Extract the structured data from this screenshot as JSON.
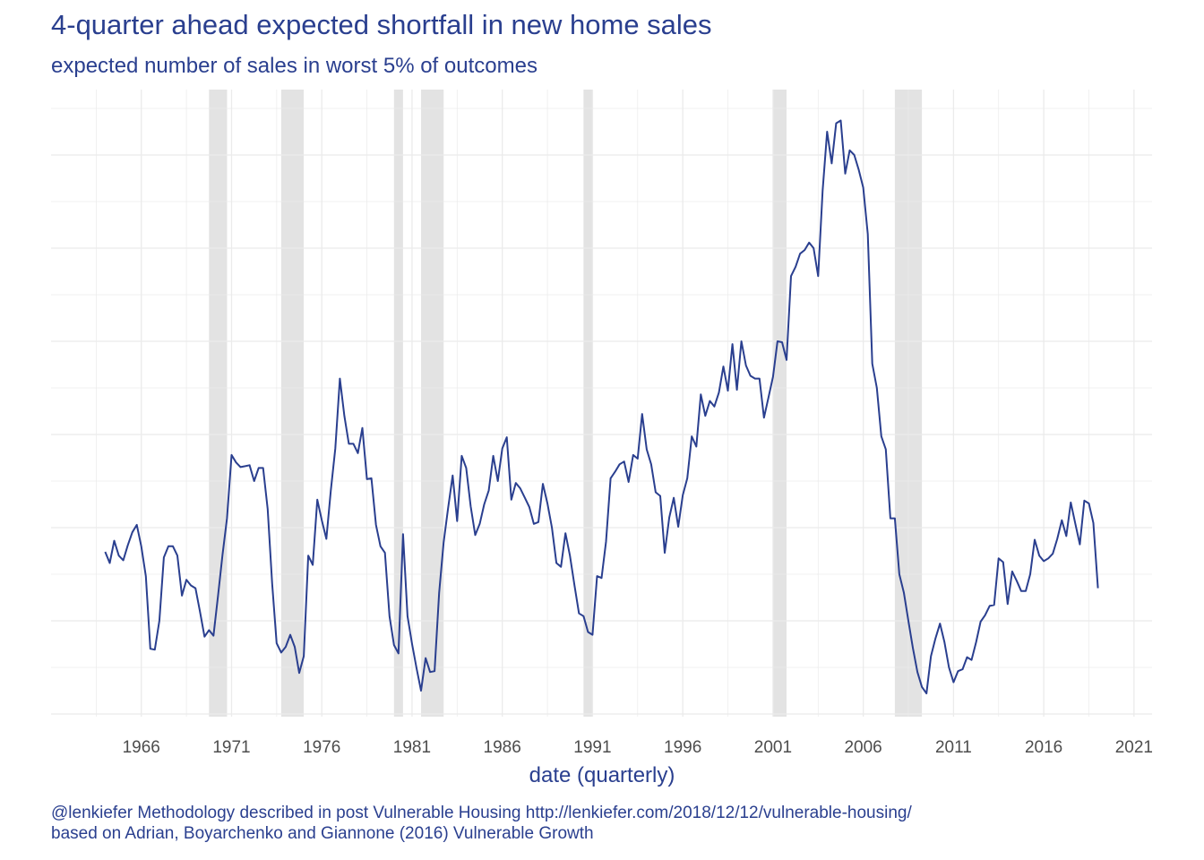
{
  "chart_data": {
    "type": "line",
    "title": "4-quarter ahead expected shortfall in new home sales",
    "subtitle": "expected number of sales in worst 5% of outcomes",
    "xlabel": "date (quarterly)",
    "ylabel": "",
    "x_range": [
      1961.0,
      2022.0
    ],
    "x_ticks": [
      1966,
      1971,
      1976,
      1981,
      1986,
      1991,
      1996,
      2001,
      2006,
      2011,
      2016,
      2021
    ],
    "y_range": [
      0,
      7
    ],
    "y_tick_labels_shown": false,
    "grid": true,
    "recession_shading_color": "#e3e3e3",
    "line_color": "#2a3f8f",
    "recessions": [
      [
        1969.75,
        1970.75
      ],
      [
        1973.75,
        1975.0
      ],
      [
        1980.0,
        1980.5
      ],
      [
        1981.5,
        1982.75
      ],
      [
        1990.5,
        1991.0
      ],
      [
        2001.0,
        2001.75
      ],
      [
        2007.75,
        2009.25
      ]
    ],
    "series": [
      {
        "x": [
          1964.0,
          1964.25,
          1964.5,
          1964.75,
          1965.0,
          1965.25,
          1965.5,
          1965.75,
          1966.0,
          1966.25,
          1966.5,
          1966.75,
          1967.0,
          1967.25,
          1967.5,
          1967.75,
          1968.0,
          1968.25,
          1968.5,
          1968.75,
          1969.0,
          1969.25,
          1969.5,
          1969.75,
          1970.0,
          1970.25,
          1970.5,
          1970.75,
          1971.0,
          1971.25,
          1971.5,
          1971.75,
          1972.0,
          1972.25,
          1972.5,
          1972.75,
          1973.0,
          1973.25,
          1973.5,
          1973.75,
          1974.0,
          1974.25,
          1974.5,
          1974.75,
          1975.0,
          1975.25,
          1975.5,
          1975.75,
          1976.0,
          1976.25,
          1976.5,
          1976.75,
          1977.0,
          1977.25,
          1977.5,
          1977.75,
          1978.0,
          1978.25,
          1978.5,
          1978.75,
          1979.0,
          1979.25,
          1979.5,
          1979.75,
          1980.0,
          1980.25,
          1980.5,
          1980.75,
          1981.0,
          1981.25,
          1981.5,
          1981.75,
          1982.0,
          1982.25,
          1982.5,
          1982.75,
          1983.0,
          1983.25,
          1983.5,
          1983.75,
          1984.0,
          1984.25,
          1984.5,
          1984.75,
          1985.0,
          1985.25,
          1985.5,
          1985.75,
          1986.0,
          1986.25,
          1986.5,
          1986.75,
          1987.0,
          1987.25,
          1987.5,
          1987.75,
          1988.0,
          1988.25,
          1988.5,
          1988.75,
          1989.0,
          1989.25,
          1989.5,
          1989.75,
          1990.0,
          1990.25,
          1990.5,
          1990.75,
          1991.0,
          1991.25,
          1991.5,
          1991.75,
          1992.0,
          1992.25,
          1992.5,
          1992.75,
          1993.0,
          1993.25,
          1993.5,
          1993.75,
          1994.0,
          1994.25,
          1994.5,
          1994.75,
          1995.0,
          1995.25,
          1995.5,
          1995.75,
          1996.0,
          1996.25,
          1996.5,
          1996.75,
          1997.0,
          1997.25,
          1997.5,
          1997.75,
          1998.0,
          1998.25,
          1998.5,
          1998.75,
          1999.0,
          1999.25,
          1999.5,
          1999.75,
          2000.0,
          2000.25,
          2000.5,
          2000.75,
          2001.0,
          2001.25,
          2001.5,
          2001.75,
          2002.0,
          2002.25,
          2002.5,
          2002.75,
          2003.0,
          2003.25,
          2003.5,
          2003.75,
          2004.0,
          2004.25,
          2004.5,
          2004.75,
          2005.0,
          2005.25,
          2005.5,
          2005.75,
          2006.0,
          2006.25,
          2006.5,
          2006.75,
          2007.0,
          2007.25,
          2007.5,
          2007.75,
          2008.0,
          2008.25,
          2008.5,
          2008.75,
          2009.0,
          2009.25,
          2009.5,
          2009.75,
          2010.0,
          2010.25,
          2010.5,
          2010.75,
          2011.0,
          2011.25,
          2011.5,
          2011.75,
          2012.0,
          2012.25,
          2012.5,
          2012.75,
          2013.0,
          2013.25,
          2013.5,
          2013.75,
          2014.0,
          2014.25,
          2014.5,
          2014.75,
          2015.0,
          2015.25,
          2015.5,
          2015.75,
          2016.0,
          2016.25,
          2016.5,
          2016.75,
          2017.0,
          2017.25,
          2017.5,
          2017.75,
          2018.0,
          2018.25,
          2018.5,
          2018.75,
          2019.0
        ],
        "y": [
          1.74,
          1.62,
          1.86,
          1.7,
          1.65,
          1.81,
          1.95,
          2.03,
          1.8,
          1.48,
          0.7,
          0.69,
          1.0,
          1.68,
          1.8,
          1.8,
          1.7,
          1.27,
          1.44,
          1.38,
          1.35,
          1.1,
          0.83,
          0.9,
          0.84,
          1.27,
          1.71,
          2.1,
          2.78,
          2.7,
          2.65,
          2.66,
          2.67,
          2.5,
          2.64,
          2.64,
          2.2,
          1.4,
          0.76,
          0.66,
          0.72,
          0.85,
          0.72,
          0.44,
          0.62,
          1.7,
          1.6,
          2.3,
          2.08,
          1.88,
          2.4,
          2.85,
          3.6,
          3.2,
          2.9,
          2.9,
          2.8,
          3.07,
          2.52,
          2.53,
          2.03,
          1.8,
          1.73,
          1.05,
          0.74,
          0.65,
          1.93,
          1.05,
          0.75,
          0.49,
          0.25,
          0.6,
          0.45,
          0.46,
          1.3,
          1.84,
          2.21,
          2.56,
          2.07,
          2.77,
          2.64,
          2.23,
          1.92,
          2.04,
          2.25,
          2.4,
          2.77,
          2.5,
          2.85,
          2.97,
          2.3,
          2.48,
          2.42,
          2.32,
          2.22,
          2.04,
          2.06,
          2.47,
          2.26,
          2.0,
          1.62,
          1.58,
          1.94,
          1.7,
          1.38,
          1.08,
          1.05,
          0.88,
          0.85,
          1.48,
          1.46,
          1.85,
          2.53,
          2.6,
          2.68,
          2.71,
          2.49,
          2.78,
          2.74,
          3.22,
          2.84,
          2.68,
          2.38,
          2.34,
          1.73,
          2.11,
          2.32,
          2.01,
          2.35,
          2.53,
          2.98,
          2.87,
          3.43,
          3.2,
          3.36,
          3.3,
          3.45,
          3.73,
          3.47,
          3.97,
          3.48,
          4.0,
          3.74,
          3.63,
          3.6,
          3.6,
          3.18,
          3.4,
          3.62,
          4.0,
          3.99,
          3.8,
          4.7,
          4.8,
          4.94,
          4.98,
          5.06,
          5.0,
          4.7,
          5.62,
          6.25,
          5.91,
          6.34,
          6.37,
          5.8,
          6.05,
          6.0,
          5.84,
          5.65,
          5.15,
          3.76,
          3.5,
          2.98,
          2.84,
          2.1,
          2.1,
          1.5,
          1.3,
          1.0,
          0.71,
          0.45,
          0.29,
          0.22,
          0.62,
          0.81,
          0.97,
          0.77,
          0.5,
          0.34,
          0.46,
          0.48,
          0.61,
          0.58,
          0.77,
          0.99,
          1.06,
          1.16,
          1.17,
          1.67,
          1.63,
          1.18,
          1.53,
          1.43,
          1.32,
          1.32,
          1.5,
          1.87,
          1.7,
          1.64,
          1.67,
          1.72,
          1.88,
          2.08,
          1.91,
          2.27,
          2.04,
          1.82,
          2.29,
          2.26,
          2.05,
          1.35
        ]
      }
    ]
  },
  "caption": {
    "line1": "@lenkiefer Methodology described in post Vulnerable Housing http://lenkiefer.com/2018/12/12/vulnerable-housing/",
    "line2": "based on Adrian, Boyarchenko and Giannone (2016) Vulnerable Growth"
  }
}
